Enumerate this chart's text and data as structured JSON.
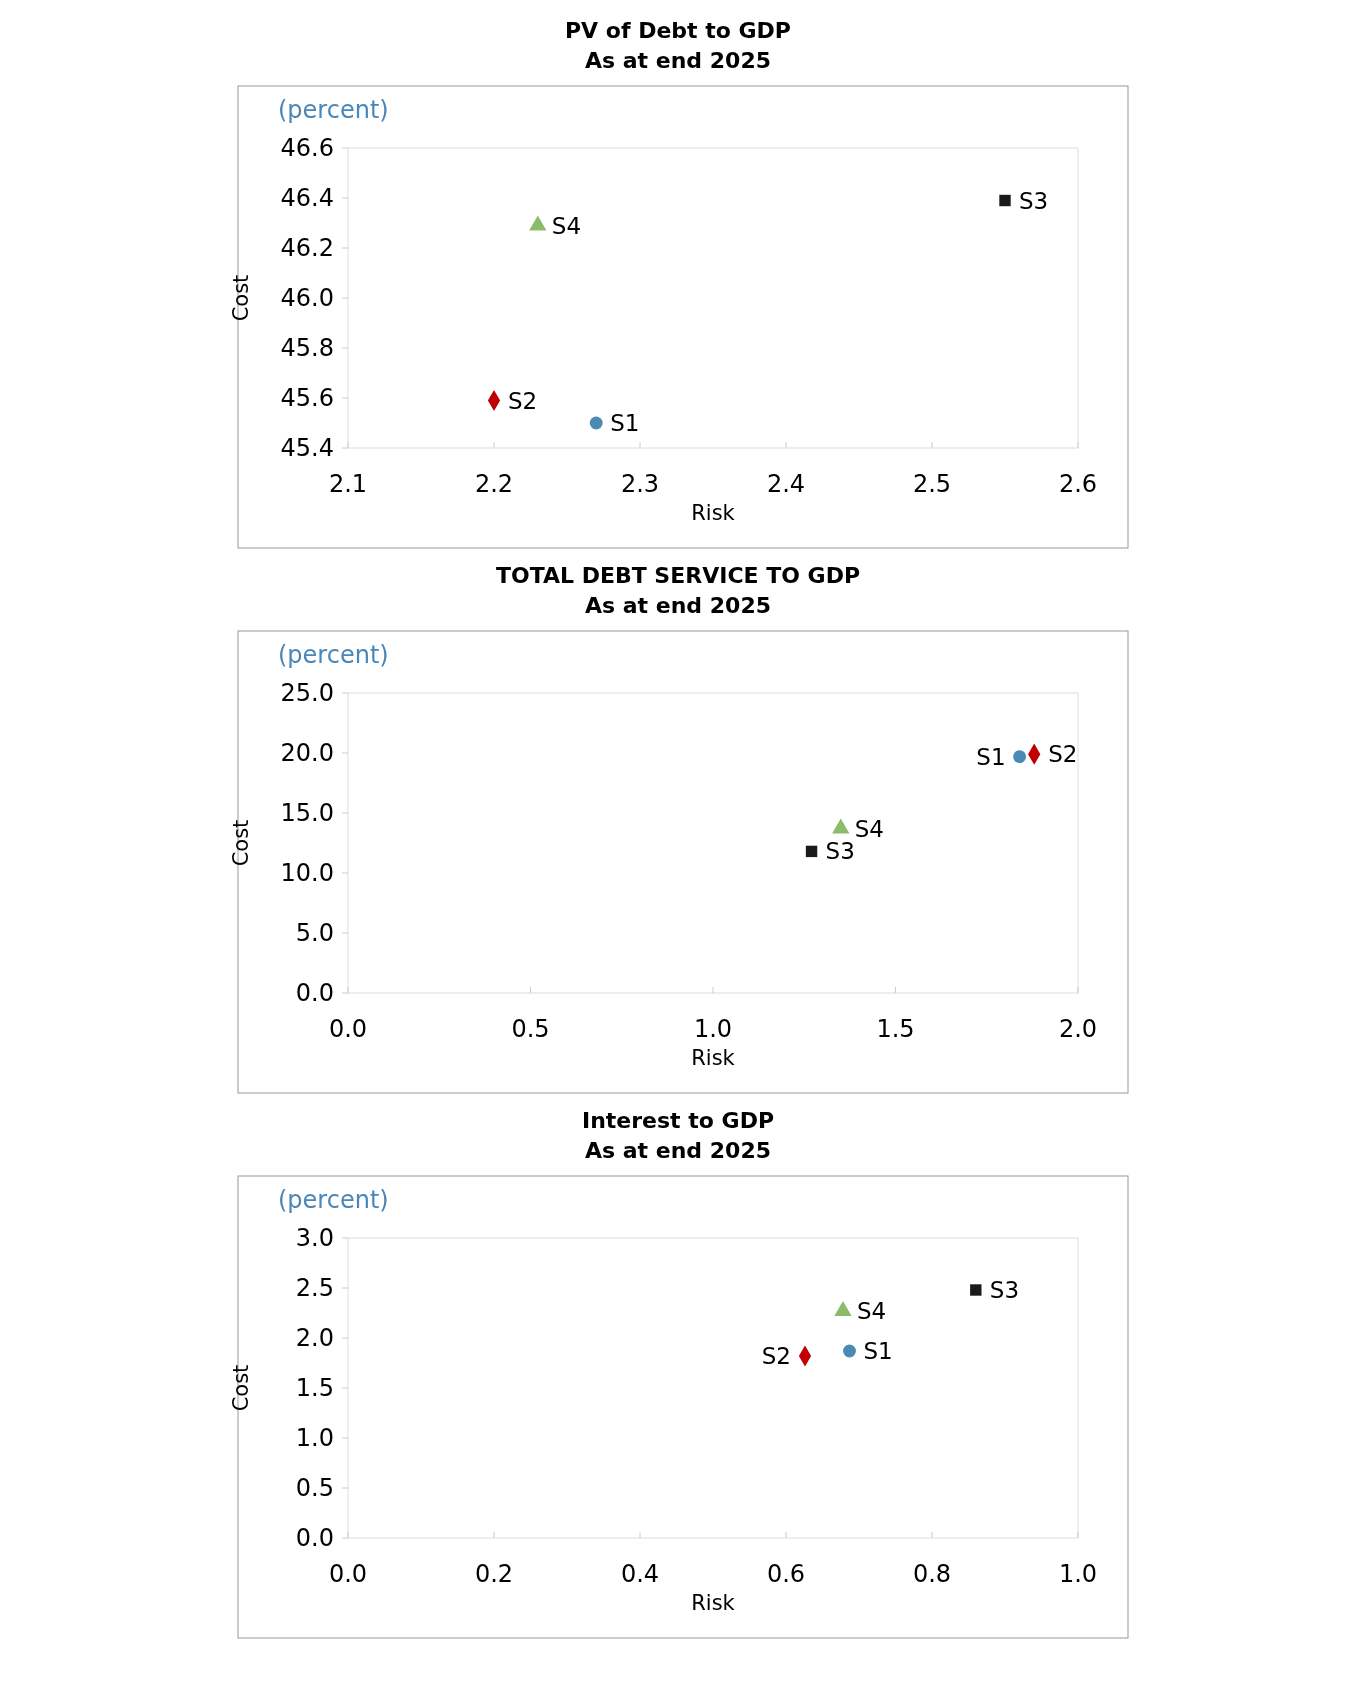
{
  "chart_data": [
    {
      "type": "scatter",
      "title": "PV of Debt to GDP",
      "subtitle": "As at end 2025",
      "xlabel": "Risk",
      "ylabel": "Cost",
      "annotations": [
        "(percent)"
      ],
      "xlim": [
        2.1,
        2.6
      ],
      "xticks": [
        {
          "value": 2.1,
          "label": "2.1"
        },
        {
          "value": 2.2,
          "label": "2.2"
        },
        {
          "value": 2.3,
          "label": "2.3"
        },
        {
          "value": 2.4,
          "label": "2.4"
        },
        {
          "value": 2.5,
          "label": "2.5"
        },
        {
          "value": 2.6,
          "label": "2.6"
        }
      ],
      "ylim": [
        45.4,
        46.6
      ],
      "yticks": [
        {
          "value": 45.4,
          "label": "45.4"
        },
        {
          "value": 45.6,
          "label": "45.6"
        },
        {
          "value": 45.8,
          "label": "45.8"
        },
        {
          "value": 46,
          "label": "46.0"
        },
        {
          "value": 46.2,
          "label": "46.2"
        },
        {
          "value": 46.4,
          "label": "46.4"
        },
        {
          "value": 46.6,
          "label": "46.6"
        }
      ],
      "grid": false,
      "series": [
        {
          "name": "S1",
          "color": "#4a8ab5",
          "marker": "circle",
          "x": [
            2.27
          ],
          "values": [
            45.5
          ]
        },
        {
          "name": "S2",
          "color": "#c00000",
          "marker": "diamond",
          "x": [
            2.2
          ],
          "values": [
            45.59
          ]
        },
        {
          "name": "S3",
          "color": "#1a1a1a",
          "marker": "square",
          "x": [
            2.55
          ],
          "values": [
            46.39
          ]
        },
        {
          "name": "S4",
          "color": "#8dbb6c",
          "marker": "triangle",
          "x": [
            2.23
          ],
          "values": [
            46.29
          ]
        }
      ]
    },
    {
      "type": "scatter",
      "title": "TOTAL DEBT SERVICE TO GDP",
      "subtitle": "As at end 2025",
      "xlabel": "Risk",
      "ylabel": "Cost",
      "annotations": [
        "(percent)"
      ],
      "xlim": [
        0,
        2
      ],
      "xticks": [
        {
          "value": 0,
          "label": "0.0"
        },
        {
          "value": 0.5,
          "label": "0.5"
        },
        {
          "value": 1,
          "label": "1.0"
        },
        {
          "value": 1.5,
          "label": "1.5"
        },
        {
          "value": 2,
          "label": "2.0"
        }
      ],
      "ylim": [
        0,
        25
      ],
      "yticks": [
        {
          "value": 0,
          "label": "0.0"
        },
        {
          "value": 5,
          "label": "5.0"
        },
        {
          "value": 10,
          "label": "10.0"
        },
        {
          "value": 15,
          "label": "15.0"
        },
        {
          "value": 20,
          "label": "20.0"
        },
        {
          "value": 25,
          "label": "25.0"
        }
      ],
      "grid": false,
      "series": [
        {
          "name": "S1",
          "color": "#4a8ab5",
          "marker": "circle",
          "x": [
            1.84
          ],
          "values": [
            19.7
          ]
        },
        {
          "name": "S2",
          "color": "#c00000",
          "marker": "diamond",
          "x": [
            1.88
          ],
          "values": [
            19.9
          ]
        },
        {
          "name": "S3",
          "color": "#1a1a1a",
          "marker": "square",
          "x": [
            1.27
          ],
          "values": [
            11.8
          ]
        },
        {
          "name": "S4",
          "color": "#8dbb6c",
          "marker": "triangle",
          "x": [
            1.35
          ],
          "values": [
            13.7
          ]
        }
      ]
    },
    {
      "type": "scatter",
      "title": "Interest to GDP",
      "subtitle": "As at end 2025",
      "xlabel": "Risk",
      "ylabel": "Cost",
      "annotations": [
        "(percent)"
      ],
      "xlim": [
        0,
        1
      ],
      "xticks": [
        {
          "value": 0,
          "label": "0.0"
        },
        {
          "value": 0.2,
          "label": "0.2"
        },
        {
          "value": 0.4,
          "label": "0.4"
        },
        {
          "value": 0.6,
          "label": "0.6"
        },
        {
          "value": 0.8,
          "label": "0.8"
        },
        {
          "value": 1,
          "label": "1.0"
        }
      ],
      "ylim": [
        0,
        3
      ],
      "yticks": [
        {
          "value": 0,
          "label": "0.0"
        },
        {
          "value": 0.5,
          "label": "0.5"
        },
        {
          "value": 1,
          "label": "1.0"
        },
        {
          "value": 1.5,
          "label": "1.5"
        },
        {
          "value": 2,
          "label": "2.0"
        },
        {
          "value": 2.5,
          "label": "2.5"
        },
        {
          "value": 3,
          "label": "3.0"
        }
      ],
      "grid": false,
      "series": [
        {
          "name": "S1",
          "color": "#4a8ab5",
          "marker": "circle",
          "x": [
            0.687
          ],
          "values": [
            1.87
          ]
        },
        {
          "name": "S2",
          "color": "#c00000",
          "marker": "diamond",
          "x": [
            0.626
          ],
          "values": [
            1.82
          ]
        },
        {
          "name": "S3",
          "color": "#1a1a1a",
          "marker": "square",
          "x": [
            0.86
          ],
          "values": [
            2.48
          ]
        },
        {
          "name": "S4",
          "color": "#8dbb6c",
          "marker": "triangle",
          "x": [
            0.678
          ],
          "values": [
            2.27
          ]
        }
      ]
    }
  ]
}
